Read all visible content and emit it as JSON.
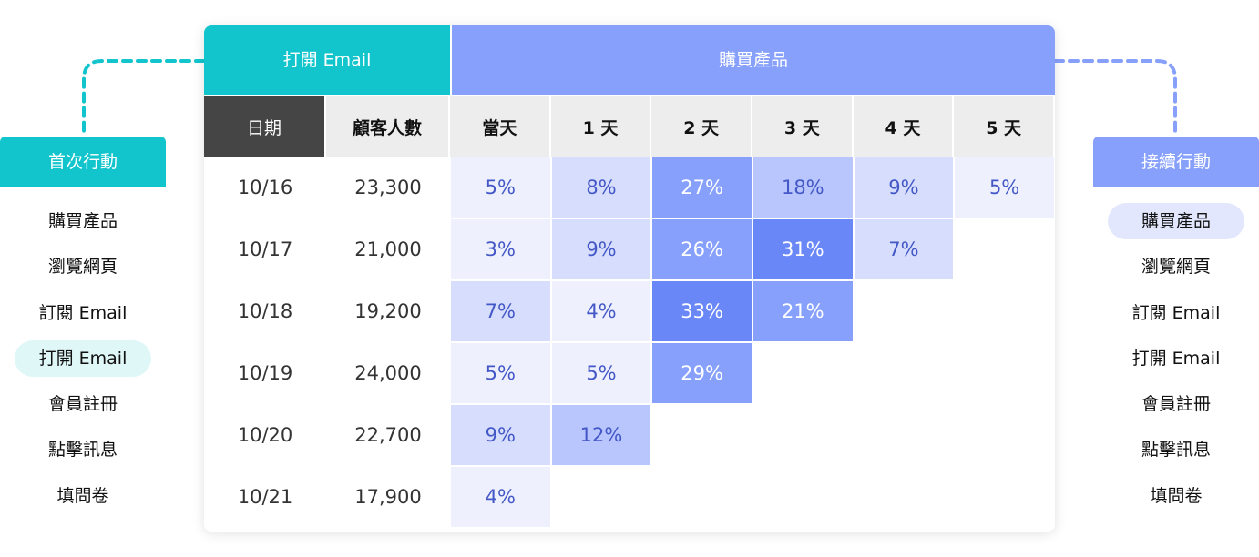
{
  "left_panel": {
    "title": "首次行動",
    "items": [
      "購買產品",
      "瀏覽網頁",
      "訂閱 Email",
      "打開 Email",
      "會員註冊",
      "點擊訊息",
      "填問卷"
    ],
    "active_index": 3,
    "accent": "#12c5cc"
  },
  "right_panel": {
    "title": "接續行動",
    "items": [
      "購買產品",
      "瀏覽網頁",
      "訂閱 Email",
      "打開 Email",
      "會員註冊",
      "點擊訊息",
      "填問卷"
    ],
    "active_index": 0,
    "accent": "#87a0fc"
  },
  "table": {
    "group_left": "打開 Email",
    "group_right": "購買產品",
    "headers": [
      "日期",
      "顧客人數",
      "當天",
      "1 天",
      "2 天",
      "3 天",
      "4 天",
      "5 天"
    ],
    "rows": [
      {
        "date": "10/16",
        "count": "23,300",
        "values": [
          "5%",
          "8%",
          "27%",
          "18%",
          "9%",
          "5%"
        ]
      },
      {
        "date": "10/17",
        "count": "21,000",
        "values": [
          "3%",
          "9%",
          "26%",
          "31%",
          "7%"
        ]
      },
      {
        "date": "10/18",
        "count": "19,200",
        "values": [
          "7%",
          "4%",
          "33%",
          "21%"
        ]
      },
      {
        "date": "10/19",
        "count": "24,000",
        "values": [
          "5%",
          "5%",
          "29%"
        ]
      },
      {
        "date": "10/20",
        "count": "22,700",
        "values": [
          "9%",
          "12%"
        ]
      },
      {
        "date": "10/21",
        "count": "17,900",
        "values": [
          "4%"
        ]
      }
    ]
  }
}
